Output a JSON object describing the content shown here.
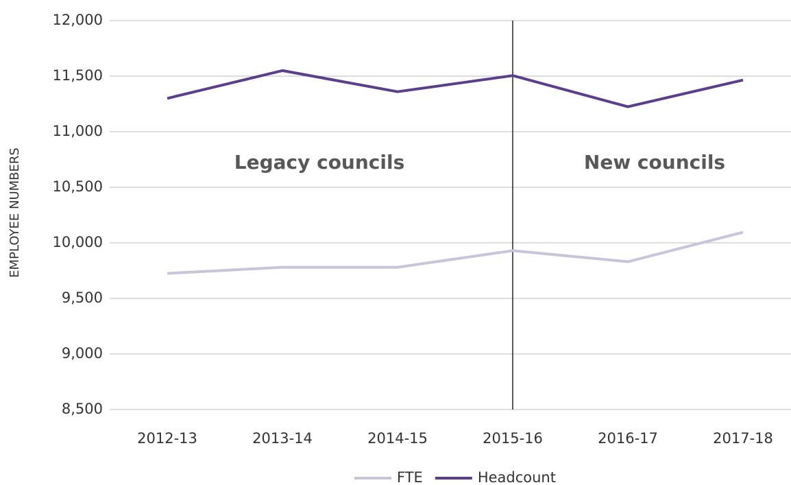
{
  "chart_data": {
    "type": "line",
    "y_label": "EMPLOYEE NUMBERS",
    "categories": [
      "2012-13",
      "2013-14",
      "2014-15",
      "2015-16",
      "2016-17",
      "2017-18"
    ],
    "series": [
      {
        "name": "FTE",
        "color": "#c9c4dc",
        "values": [
          9725,
          9780,
          9780,
          9930,
          9830,
          10095
        ]
      },
      {
        "name": "Headcount",
        "color": "#5b3f8c",
        "values": [
          11300,
          11550,
          11360,
          11505,
          11225,
          11465
        ]
      }
    ],
    "ylim": [
      8500,
      12000
    ],
    "yticks": [
      {
        "value": 8500,
        "label": "8,500"
      },
      {
        "value": 9000,
        "label": "9,000"
      },
      {
        "value": 9500,
        "label": "9,500"
      },
      {
        "value": 10000,
        "label": "10,000"
      },
      {
        "value": 10500,
        "label": "10,500"
      },
      {
        "value": 11000,
        "label": "11,000"
      },
      {
        "value": 11500,
        "label": "11,500"
      },
      {
        "value": 12000,
        "label": "12,000"
      }
    ],
    "grid": true,
    "divider": "2015-16",
    "annotations": [
      "Legacy councils",
      "New councils"
    ],
    "legend": "bottom"
  }
}
